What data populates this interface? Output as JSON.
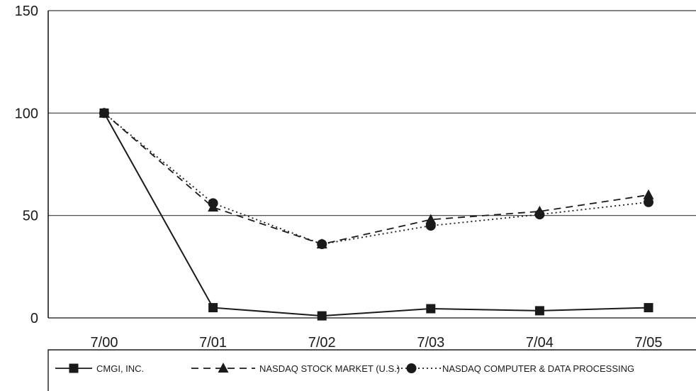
{
  "chart_data": {
    "type": "line",
    "categories": [
      "7/00",
      "7/01",
      "7/02",
      "7/03",
      "7/04",
      "7/05"
    ],
    "ylim": [
      0,
      150
    ],
    "y_ticks": [
      "0",
      "50",
      "100",
      "150"
    ],
    "grid": "horizontal",
    "legend_placement": "bottom",
    "series": [
      {
        "name": "CMGI, INC.",
        "values": [
          100,
          5,
          1,
          4.5,
          3.5,
          5
        ],
        "line_style": "solid",
        "marker": "square",
        "color": "#1a1a1a"
      },
      {
        "name": "NASDAQ STOCK MARKET (U.S.)",
        "values": [
          100,
          54,
          36,
          48,
          52,
          60
        ],
        "line_style": "dashed",
        "marker": "triangle",
        "color": "#1a1a1a"
      },
      {
        "name": "NASDAQ COMPUTER & DATA PROCESSING",
        "values": [
          100,
          56,
          36,
          45,
          50.5,
          56.5
        ],
        "line_style": "dotted",
        "marker": "circle",
        "color": "#1a1a1a"
      }
    ]
  }
}
